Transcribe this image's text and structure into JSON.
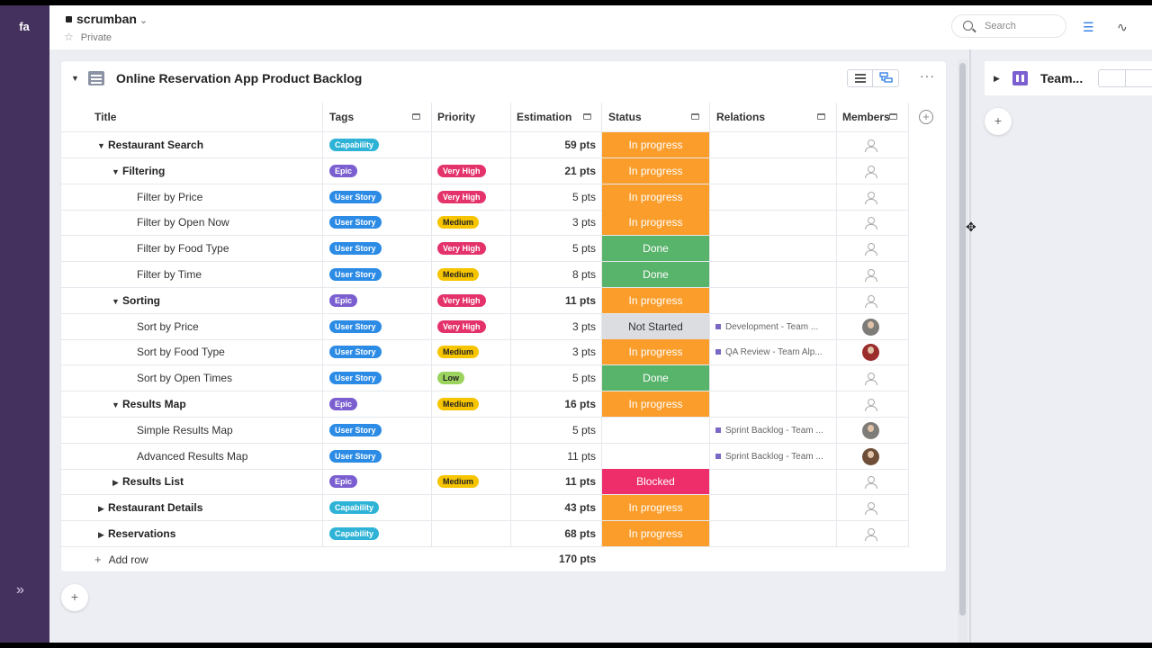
{
  "workspace": {
    "name": "scrumban",
    "visibility": "Private"
  },
  "search": {
    "placeholder": "Search"
  },
  "board": {
    "title": "Online Reservation App Product Backlog",
    "columns": {
      "title": "Title",
      "tags": "Tags",
      "priority": "Priority",
      "estimation": "Estimation",
      "status": "Status",
      "relations": "Relations",
      "members": "Members"
    },
    "add_row_label": "Add row",
    "total": "170 pts"
  },
  "second_board": {
    "title": "Team..."
  },
  "colors": {
    "rail": "#45315d",
    "capability": "#2eb3d6",
    "epic": "#7b5fd0",
    "user_story": "#2c8be5",
    "very_high": "#e4336b",
    "medium": "#f6c500",
    "low": "#9bd35e",
    "in_progress": "#fb9d2b",
    "done": "#58b36b",
    "not_started": "#dcdde1",
    "blocked": "#ee2d6b"
  },
  "rows": [
    {
      "title": "Restaurant Search",
      "level": 0,
      "bold": true,
      "expand": "open",
      "tag": "Capability",
      "tag_kind": "capability",
      "priority": "",
      "estimation": "59 pts",
      "status": "In progress",
      "status_kind": "in_progress",
      "relation": "",
      "member": "empty"
    },
    {
      "title": "Filtering",
      "level": 1,
      "bold": true,
      "expand": "open",
      "tag": "Epic",
      "tag_kind": "epic",
      "priority": "Very High",
      "priority_kind": "very_high",
      "estimation": "21 pts",
      "status": "In progress",
      "status_kind": "in_progress",
      "relation": "",
      "member": "empty"
    },
    {
      "title": "Filter by Price",
      "level": 2,
      "bold": false,
      "expand": "",
      "tag": "User Story",
      "tag_kind": "user_story",
      "priority": "Very High",
      "priority_kind": "very_high",
      "estimation": "5 pts",
      "status": "In progress",
      "status_kind": "in_progress",
      "relation": "",
      "member": "empty"
    },
    {
      "title": "Filter by Open Now",
      "level": 2,
      "bold": false,
      "expand": "",
      "tag": "User Story",
      "tag_kind": "user_story",
      "priority": "Medium",
      "priority_kind": "medium",
      "estimation": "3 pts",
      "status": "In progress",
      "status_kind": "in_progress",
      "relation": "",
      "member": "empty"
    },
    {
      "title": "Filter by Food Type",
      "level": 2,
      "bold": false,
      "expand": "",
      "tag": "User Story",
      "tag_kind": "user_story",
      "priority": "Very High",
      "priority_kind": "very_high",
      "estimation": "5 pts",
      "status": "Done",
      "status_kind": "done",
      "relation": "",
      "member": "empty"
    },
    {
      "title": "Filter by Time",
      "level": 2,
      "bold": false,
      "expand": "",
      "tag": "User Story",
      "tag_kind": "user_story",
      "priority": "Medium",
      "priority_kind": "medium",
      "estimation": "8 pts",
      "status": "Done",
      "status_kind": "done",
      "relation": "",
      "member": "empty"
    },
    {
      "title": "Sorting",
      "level": 1,
      "bold": true,
      "expand": "open",
      "tag": "Epic",
      "tag_kind": "epic",
      "priority": "Very High",
      "priority_kind": "very_high",
      "estimation": "11 pts",
      "status": "In progress",
      "status_kind": "in_progress",
      "relation": "",
      "member": "empty"
    },
    {
      "title": "Sort by Price",
      "level": 2,
      "bold": false,
      "expand": "",
      "tag": "User Story",
      "tag_kind": "user_story",
      "priority": "Very High",
      "priority_kind": "very_high",
      "estimation": "3 pts",
      "status": "Not Started",
      "status_kind": "not_started",
      "relation": "Development - Team ...",
      "member": "avatar-gray"
    },
    {
      "title": "Sort by Food Type",
      "level": 2,
      "bold": false,
      "expand": "",
      "tag": "User Story",
      "tag_kind": "user_story",
      "priority": "Medium",
      "priority_kind": "medium",
      "estimation": "3 pts",
      "status": "In progress",
      "status_kind": "in_progress",
      "relation": "QA Review - Team Alp...",
      "member": "avatar-red"
    },
    {
      "title": "Sort by Open Times",
      "level": 2,
      "bold": false,
      "expand": "",
      "tag": "User Story",
      "tag_kind": "user_story",
      "priority": "Low",
      "priority_kind": "low",
      "estimation": "5 pts",
      "status": "Done",
      "status_kind": "done",
      "relation": "",
      "member": "empty"
    },
    {
      "title": "Results Map",
      "level": 1,
      "bold": true,
      "expand": "open",
      "tag": "Epic",
      "tag_kind": "epic",
      "priority": "Medium",
      "priority_kind": "medium",
      "estimation": "16 pts",
      "status": "In progress",
      "status_kind": "in_progress",
      "relation": "",
      "member": "empty"
    },
    {
      "title": "Simple Results Map",
      "level": 2,
      "bold": false,
      "expand": "",
      "tag": "User Story",
      "tag_kind": "user_story",
      "priority": "",
      "estimation": "5 pts",
      "status": "",
      "status_kind": "",
      "relation": "Sprint Backlog - Team ...",
      "member": "avatar-gray"
    },
    {
      "title": "Advanced Results Map",
      "level": 2,
      "bold": false,
      "expand": "",
      "tag": "User Story",
      "tag_kind": "user_story",
      "priority": "",
      "estimation": "11 pts",
      "status": "",
      "status_kind": "",
      "relation": "Sprint Backlog - Team ...",
      "member": "avatar-brown"
    },
    {
      "title": "Results List",
      "level": 1,
      "bold": true,
      "expand": "closed",
      "tag": "Epic",
      "tag_kind": "epic",
      "priority": "Medium",
      "priority_kind": "medium",
      "estimation": "11 pts",
      "status": "Blocked",
      "status_kind": "blocked",
      "relation": "",
      "member": "empty"
    },
    {
      "title": "Restaurant Details",
      "level": 0,
      "bold": true,
      "expand": "closed",
      "tag": "Capability",
      "tag_kind": "capability",
      "priority": "",
      "estimation": "43 pts",
      "status": "In progress",
      "status_kind": "in_progress",
      "relation": "",
      "member": "empty"
    },
    {
      "title": "Reservations",
      "level": 0,
      "bold": true,
      "expand": "closed",
      "tag": "Capability",
      "tag_kind": "capability",
      "priority": "",
      "estimation": "68 pts",
      "status": "In progress",
      "status_kind": "in_progress",
      "relation": "",
      "member": "empty"
    }
  ]
}
